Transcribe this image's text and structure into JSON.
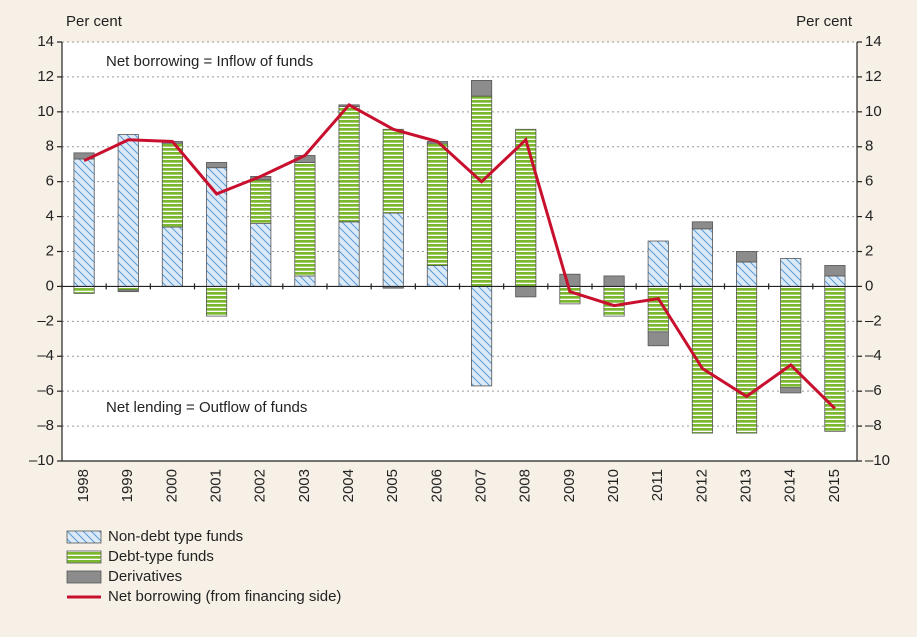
{
  "chart_data": {
    "type": "bar",
    "y_label_left": "Per cent",
    "y_label_right": "Per cent",
    "annotations": [
      "Net borrowing = Inflow of funds",
      "Net lending = Outflow of funds"
    ],
    "categories": [
      "1998",
      "1999",
      "2000",
      "2001",
      "2002",
      "2003",
      "2004",
      "2005",
      "2006",
      "2007",
      "2008",
      "2009",
      "2010",
      "2011",
      "2012",
      "2013",
      "2014",
      "2015"
    ],
    "series": [
      {
        "name": "Non-debt type funds",
        "type": "bar",
        "hatch": "diagonal",
        "color": "#5b9bd5",
        "values": [
          7.3,
          8.7,
          3.4,
          6.8,
          3.6,
          0.6,
          3.7,
          4.2,
          1.2,
          -5.7,
          0,
          0,
          0,
          2.6,
          3.3,
          1.4,
          1.6,
          0.6
        ]
      },
      {
        "name": "Debt-type funds",
        "type": "bar",
        "hatch": "horizontal",
        "color": "#7cb82f",
        "values": [
          -0.4,
          -0.2,
          4.8,
          -1.7,
          2.5,
          6.5,
          6.6,
          4.8,
          7.0,
          10.9,
          9.0,
          -1.0,
          -1.7,
          -2.6,
          -8.4,
          -8.4,
          -5.8,
          -8.3
        ]
      },
      {
        "name": "Derivatives",
        "type": "bar",
        "color": "#8c8c8c",
        "values": [
          0.35,
          -0.1,
          0.1,
          0.3,
          0.2,
          0.4,
          0.1,
          -0.1,
          0.1,
          0.9,
          -0.6,
          0.7,
          0.6,
          -0.8,
          0.4,
          0.6,
          -0.3,
          0.6
        ]
      },
      {
        "name": "Net borrowing (from financing side)",
        "type": "line",
        "color": "#c8102e",
        "values": [
          7.2,
          8.4,
          8.3,
          5.3,
          6.3,
          7.5,
          10.4,
          9.0,
          8.3,
          6.0,
          8.4,
          -0.3,
          -1.1,
          -0.7,
          -4.7,
          -6.3,
          -4.5,
          -7.0
        ]
      }
    ],
    "ylim": [
      -10,
      14
    ],
    "yticks": [
      {
        "value": -10,
        "label": "–10"
      },
      {
        "value": -8,
        "label": "–8"
      },
      {
        "value": -6,
        "label": "–6"
      },
      {
        "value": -4,
        "label": "–4"
      },
      {
        "value": -2,
        "label": "–2"
      },
      0,
      2,
      4,
      6,
      8,
      10,
      12,
      14
    ],
    "grid": true
  }
}
